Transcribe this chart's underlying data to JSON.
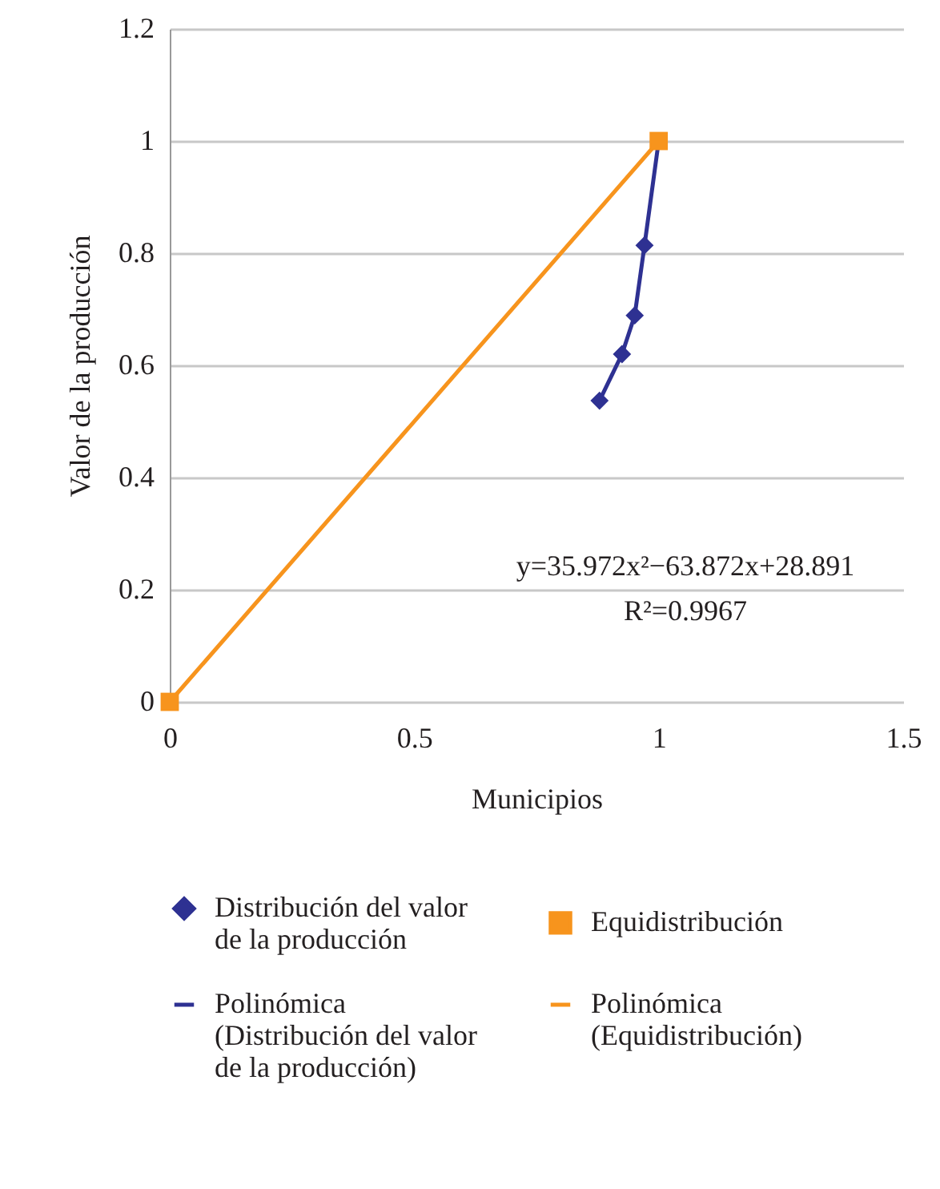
{
  "chart_data": {
    "type": "scatter",
    "xlabel": "Municipios",
    "ylabel": "Valor de la producción",
    "xlim": [
      0,
      1.5
    ],
    "xticks": [
      0,
      0.5,
      1,
      1.5
    ],
    "ylim": [
      0,
      1.2
    ],
    "yticks": [
      0,
      0.2,
      0.4,
      0.6,
      0.8,
      1,
      1.2
    ],
    "grid": "y",
    "legend": "bottom",
    "series": [
      {
        "name": "Distribución del valor de la producción",
        "marker": "diamond",
        "color": "#2e3192",
        "x": [
          0.879,
          0.925,
          0.951,
          0.971
        ],
        "values": [
          0.537,
          0.62,
          0.689,
          0.814
        ]
      },
      {
        "name": "Equidistribución",
        "marker": "square",
        "color": "#f7941d",
        "x": [
          0,
          1
        ],
        "values": [
          0,
          1
        ]
      },
      {
        "name": "Polinómica (Distribución del valor de la producción)",
        "type": "line",
        "color": "#2e3192",
        "x": [
          0.879,
          0.925,
          0.951,
          0.971,
          1
        ],
        "values": [
          0.537,
          0.62,
          0.689,
          0.814,
          1
        ]
      },
      {
        "name": "Polinómica (Equidistribución)",
        "type": "line",
        "color": "#f7941d",
        "x": [
          0,
          1
        ],
        "values": [
          0,
          1
        ]
      }
    ],
    "annotations": [
      "y=35.972x²−63.872x+28.891",
      "R²=0.9967"
    ]
  }
}
